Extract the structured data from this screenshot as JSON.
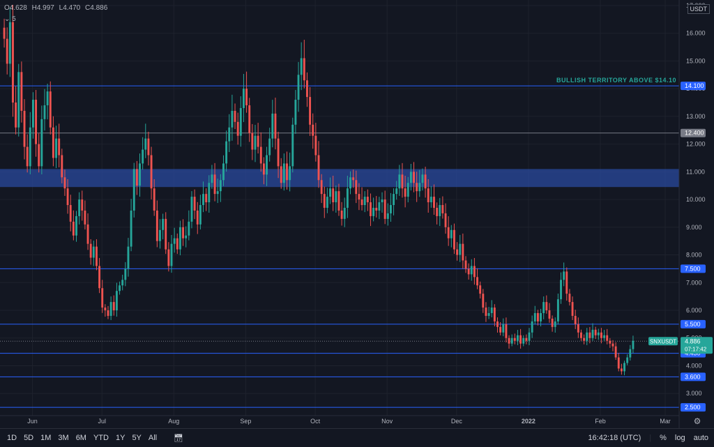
{
  "header": {
    "ohlc": [
      {
        "key": "O",
        "value": "4.628"
      },
      {
        "key": "H",
        "value": "4.997"
      },
      {
        "key": "L",
        "value": "4.470"
      },
      {
        "key": "C",
        "value": "4.886"
      }
    ],
    "indicator_toggle": "5"
  },
  "bottom": {
    "timeframes": [
      "1D",
      "5D",
      "1M",
      "3M",
      "6M",
      "YTD",
      "1Y",
      "5Y",
      "All"
    ],
    "clock": "16:42:18 (UTC)",
    "percent_label": "%",
    "log_label": "log",
    "auto_label": "auto"
  },
  "colors": {
    "background": "#131722",
    "up": "#26a69a",
    "down": "#ef5350",
    "level_line": "#2962ff",
    "zone": "#2a4a9e",
    "grid": "#1e222d"
  },
  "chart_data": {
    "type": "candlestick",
    "symbol": "SNXUSDT",
    "quote_currency": "USDT",
    "last_price": "4.886",
    "countdown": "07:17:42",
    "ylim": [
      2.2,
      17.2
    ],
    "y_ticks": [
      "17.000",
      "16.000",
      "15.000",
      "14.000",
      "13.000",
      "12.000",
      "11.000",
      "10.000",
      "9.000",
      "8.000",
      "7.000",
      "6.000",
      "5.000",
      "4.000",
      "3.000"
    ],
    "x_labels": [
      {
        "date": "2021-06-01",
        "label": "Jun"
      },
      {
        "date": "2021-07-01",
        "label": "Jul"
      },
      {
        "date": "2021-08-01",
        "label": "Aug"
      },
      {
        "date": "2021-09-01",
        "label": "Sep"
      },
      {
        "date": "2021-10-01",
        "label": "Oct"
      },
      {
        "date": "2021-11-01",
        "label": "Nov"
      },
      {
        "date": "2021-12-01",
        "label": "Dec"
      },
      {
        "date": "2022-01-01",
        "label": "2022"
      },
      {
        "date": "2022-02-01",
        "label": "Feb"
      },
      {
        "date": "2022-03-01",
        "label": "Mar"
      }
    ],
    "x_start": "2021-05-18",
    "x_end": "2022-03-07",
    "levels": [
      {
        "value": 14.1,
        "label": "14.100"
      },
      {
        "value": 12.4,
        "label": "12.400",
        "style": "grey"
      },
      {
        "value": 7.5,
        "label": "7.500"
      },
      {
        "value": 5.5,
        "label": "5.500"
      },
      {
        "value": 4.45,
        "label": "4.450"
      },
      {
        "value": 3.6,
        "label": "3.600"
      },
      {
        "value": 2.5,
        "label": "2.500"
      }
    ],
    "zone": {
      "low": 10.45,
      "high": 11.1
    },
    "annotation": "BULLISH TERRITORY ABOVE $14.10",
    "closes": [
      15.8,
      14.9,
      16.4,
      13.5,
      12.6,
      14.6,
      13.2,
      11.9,
      11.2,
      12.6,
      13.6,
      12.0,
      11.2,
      12.9,
      13.4,
      13.9,
      12.6,
      11.5,
      12.2,
      11.6,
      10.8,
      10.4,
      9.8,
      9.2,
      8.7,
      9.4,
      10.0,
      9.6,
      9.1,
      8.4,
      7.9,
      8.3,
      7.6,
      6.8,
      6.1,
      6.0,
      5.8,
      6.3,
      6.0,
      6.7,
      6.9,
      7.1,
      7.5,
      8.3,
      9.6,
      11.1,
      10.5,
      11.3,
      11.8,
      12.2,
      11.6,
      10.4,
      9.6,
      8.5,
      8.9,
      9.3,
      8.2,
      7.6,
      8.4,
      8.6,
      8.2,
      9.0,
      8.6,
      8.7,
      9.2,
      10.1,
      9.6,
      9.1,
      9.8,
      10.2,
      9.9,
      10.6,
      10.9,
      10.2,
      10.3,
      10.7,
      11.3,
      12.1,
      12.6,
      13.2,
      12.8,
      12.3,
      13.3,
      14.0,
      13.4,
      12.4,
      11.8,
      12.3,
      11.9,
      11.3,
      10.9,
      11.6,
      12.2,
      13.1,
      12.2,
      11.2,
      10.6,
      11.3,
      10.7,
      11.2,
      12.7,
      13.6,
      14.5,
      15.1,
      14.3,
      13.7,
      12.7,
      12.3,
      11.6,
      10.7,
      10.2,
      9.7,
      10.1,
      10.4,
      9.9,
      10.3,
      9.6,
      9.3,
      9.7,
      10.4,
      10.8,
      10.7,
      10.2,
      10.0,
      9.8,
      10.1,
      9.9,
      9.4,
      9.7,
      9.6,
      9.9,
      10.0,
      9.3,
      9.5,
      9.8,
      10.2,
      10.4,
      10.9,
      10.4,
      10.1,
      10.6,
      11.0,
      10.6,
      10.3,
      10.6,
      10.9,
      10.4,
      9.9,
      10.1,
      9.7,
      9.4,
      9.8,
      9.5,
      9.0,
      8.6,
      8.9,
      8.2,
      8.0,
      8.4,
      7.8,
      7.5,
      7.3,
      7.6,
      7.2,
      6.9,
      6.6,
      6.1,
      5.8,
      5.9,
      6.1,
      5.6,
      5.4,
      5.2,
      5.5,
      5.0,
      4.8,
      5.0,
      4.9,
      5.1,
      4.8,
      5.0,
      4.9,
      5.2,
      5.6,
      5.9,
      5.6,
      5.9,
      6.3,
      6.0,
      5.7,
      5.4,
      5.6,
      6.4,
      7.1,
      7.4,
      6.6,
      6.3,
      5.8,
      5.5,
      5.2,
      5.0,
      4.9,
      5.2,
      5.0,
      5.3,
      5.1,
      5.2,
      5.0,
      5.1,
      4.9,
      4.8,
      4.7,
      4.3,
      3.9,
      3.8,
      4.1,
      4.3,
      4.6,
      4.9
    ]
  }
}
